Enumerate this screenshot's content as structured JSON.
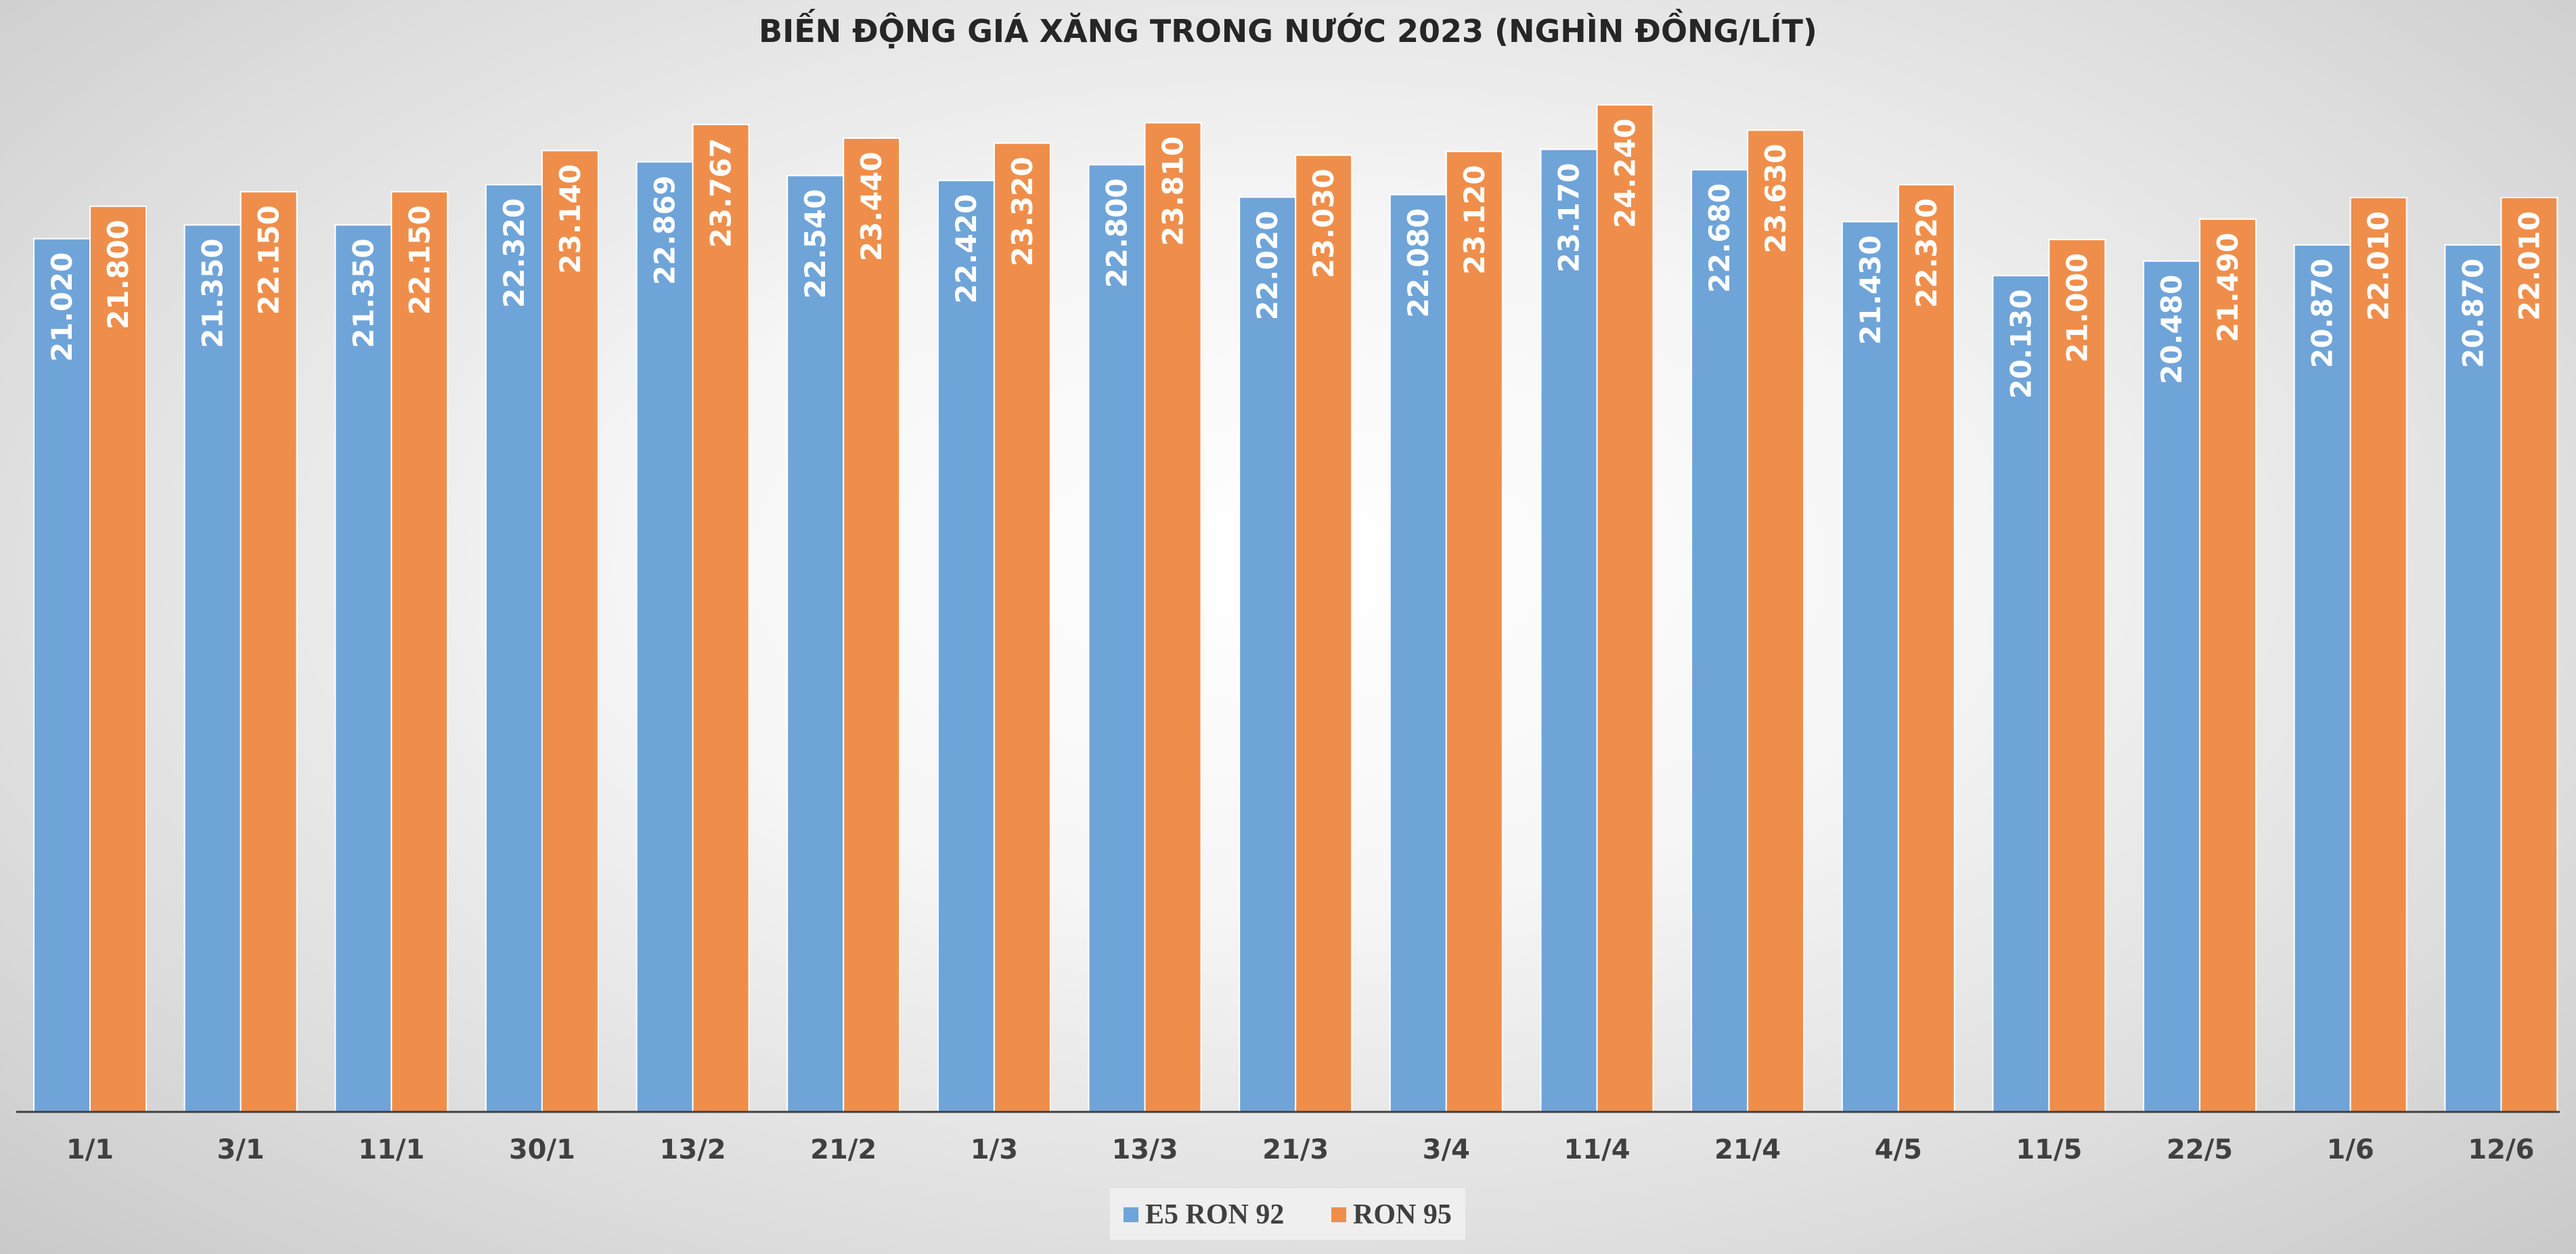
{
  "chart_data": {
    "type": "bar",
    "title": "BIẾN ĐỘNG GIÁ XĂNG TRONG NƯỚC 2023 (NGHÌN ĐỒNG/LÍT)",
    "categories": [
      "1/1",
      "3/1",
      "11/1",
      "30/1",
      "13/2",
      "21/2",
      "1/3",
      "13/3",
      "21/3",
      "3/4",
      "11/4",
      "21/4",
      "4/5",
      "11/5",
      "22/5",
      "1/6",
      "12/6"
    ],
    "series": [
      {
        "name": "E5 RON 92",
        "color": "#6FA4D9",
        "values": [
          21.02,
          21.35,
          21.35,
          22.32,
          22.869,
          22.54,
          22.42,
          22.8,
          22.02,
          22.08,
          23.17,
          22.68,
          21.43,
          20.13,
          20.48,
          20.87,
          20.87
        ],
        "labels": [
          "21.020",
          "21.350",
          "21.350",
          "22.320",
          "22.869",
          "22.540",
          "22.420",
          "22.800",
          "22.020",
          "22.080",
          "23.170",
          "22.680",
          "21.430",
          "20.130",
          "20.480",
          "20.870",
          "20.870"
        ]
      },
      {
        "name": "RON 95",
        "color": "#EF8E4B",
        "values": [
          21.8,
          22.15,
          22.15,
          23.14,
          23.767,
          23.44,
          23.32,
          23.81,
          23.03,
          23.12,
          24.24,
          23.63,
          22.32,
          21.0,
          21.49,
          22.01,
          22.01
        ],
        "labels": [
          "21.800",
          "22.150",
          "22.150",
          "23.140",
          "23.767",
          "23.440",
          "23.320",
          "23.810",
          "23.030",
          "23.120",
          "24.240",
          "23.630",
          "22.320",
          "21.000",
          "21.490",
          "22.010",
          "22.010"
        ]
      }
    ],
    "ylim": [
      0,
      24.24
    ],
    "grid": false,
    "legend_position": "bottom-center",
    "xlabel": "",
    "ylabel": ""
  }
}
